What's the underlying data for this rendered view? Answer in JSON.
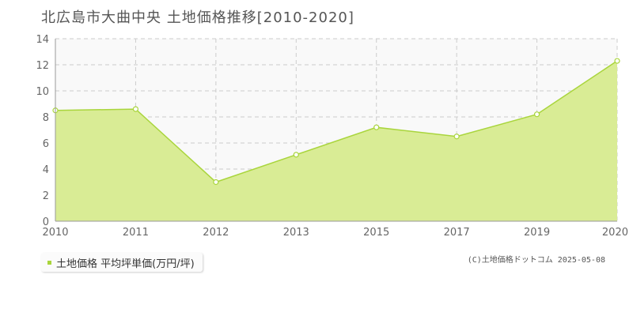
{
  "title": "北広島市大曲中央 土地価格推移[2010-2020]",
  "legend_label": "土地価格 平均坪単価(万円/坪)",
  "copyright": "(C)土地価格ドットコム 2025-05-08",
  "colors": {
    "fill": "#d9ec95",
    "line": "#a9d53c",
    "grid": "#cccccc",
    "plot_bg": "#f9f9f9"
  },
  "chart_data": {
    "type": "area",
    "title": "北広島市大曲中央 土地価格推移[2010-2020]",
    "xlabel": "",
    "ylabel": "",
    "x_ticks": [
      "2010",
      "2011",
      "2012",
      "2013",
      "2015",
      "2017",
      "2019",
      "2020"
    ],
    "y_ticks": [
      "0",
      "2",
      "4",
      "6",
      "8",
      "10",
      "12",
      "14"
    ],
    "ylim": [
      0,
      14
    ],
    "grid": true,
    "legend_position": "bottom-left",
    "series": [
      {
        "name": "土地価格 平均坪単価(万円/坪)",
        "values": [
          8.5,
          8.6,
          3.0,
          5.1,
          7.2,
          6.5,
          8.2,
          12.3
        ]
      }
    ]
  }
}
